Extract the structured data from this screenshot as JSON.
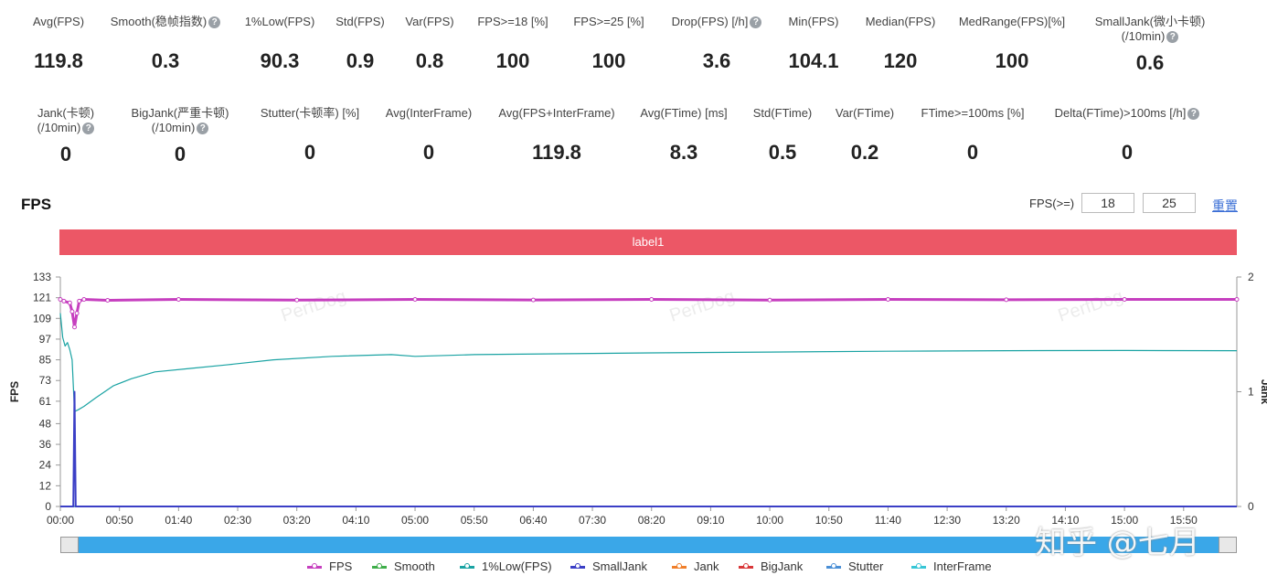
{
  "stats_row1": [
    {
      "label": "Avg(FPS)",
      "value": "119.8",
      "help": false
    },
    {
      "label": "Smooth(稳帧指数)",
      "value": "0.3",
      "help": true
    },
    {
      "label": "1%Low(FPS)",
      "value": "90.3",
      "help": false
    },
    {
      "label": "Std(FPS)",
      "value": "0.9",
      "help": false
    },
    {
      "label": "Var(FPS)",
      "value": "0.8",
      "help": false
    },
    {
      "label": "FPS>=18 [%]",
      "value": "100",
      "help": false
    },
    {
      "label": "FPS>=25 [%]",
      "value": "100",
      "help": false
    },
    {
      "label": "Drop(FPS) [/h]",
      "value": "3.6",
      "help": true
    },
    {
      "label": "Min(FPS)",
      "value": "104.1",
      "help": false
    },
    {
      "label": "Median(FPS)",
      "value": "120",
      "help": false
    },
    {
      "label": "MedRange(FPS)[%]",
      "value": "100",
      "help": false
    },
    {
      "label": "SmallJank(微小卡顿)",
      "label2": "(/10min)",
      "value": "0.6",
      "help": true
    }
  ],
  "stats_row2": [
    {
      "label": "Jank(卡顿)",
      "label2": "(/10min)",
      "value": "0",
      "help": true
    },
    {
      "label": "BigJank(严重卡顿)",
      "label2": "(/10min)",
      "value": "0",
      "help": true
    },
    {
      "label": "Stutter(卡顿率) [%]",
      "value": "0",
      "help": false
    },
    {
      "label": "Avg(InterFrame)",
      "value": "0",
      "help": false
    },
    {
      "label": "Avg(FPS+InterFrame)",
      "value": "119.8",
      "help": false
    },
    {
      "label": "Avg(FTime) [ms]",
      "value": "8.3",
      "help": false
    },
    {
      "label": "Std(FTime)",
      "value": "0.5",
      "help": false
    },
    {
      "label": "Var(FTime)",
      "value": "0.2",
      "help": false
    },
    {
      "label": "FTime>=100ms [%]",
      "value": "0",
      "help": false
    },
    {
      "label": "Delta(FTime)>100ms [/h]",
      "value": "0",
      "help": true
    }
  ],
  "section_title": "FPS",
  "threshold": {
    "label": "FPS(>=)",
    "value1": "18",
    "value2": "25",
    "reset_label": "重置"
  },
  "label_band": "label1",
  "help_glyph": "?",
  "watermark_text": "PerfDog",
  "corner_watermark": "知乎 @七月",
  "chart_data": {
    "type": "line",
    "ylabel": "FPS",
    "ylabel_right": "Jank",
    "yticks": [
      0,
      12,
      24,
      36,
      48,
      61,
      73,
      85,
      97,
      109,
      121,
      133
    ],
    "yticks_right": [
      0,
      1,
      2
    ],
    "ylim": [
      0,
      133
    ],
    "ylim_right": [
      0,
      2
    ],
    "x_ticks": [
      "00:00",
      "00:50",
      "01:40",
      "02:30",
      "03:20",
      "04:10",
      "05:00",
      "05:50",
      "06:40",
      "07:30",
      "08:20",
      "09:10",
      "10:00",
      "10:50",
      "11:40",
      "12:30",
      "13:20",
      "14:10",
      "15:00",
      "15:50"
    ],
    "x_range_seconds": [
      0,
      995
    ],
    "series": [
      {
        "name": "FPS",
        "color": "#c63fbf",
        "points": [
          [
            0,
            120
          ],
          [
            3,
            119
          ],
          [
            8,
            118
          ],
          [
            10,
            113
          ],
          [
            12,
            104
          ],
          [
            14,
            112
          ],
          [
            16,
            119
          ],
          [
            20,
            120
          ],
          [
            40,
            119.5
          ],
          [
            100,
            120
          ],
          [
            200,
            119.6
          ],
          [
            300,
            120
          ],
          [
            400,
            119.7
          ],
          [
            500,
            120
          ],
          [
            600,
            119.6
          ],
          [
            700,
            120
          ],
          [
            800,
            119.8
          ],
          [
            900,
            120
          ],
          [
            995,
            120
          ]
        ]
      },
      {
        "name": "Smooth",
        "color": "#3fae4a",
        "points": [
          [
            0,
            0
          ],
          [
            995,
            0
          ]
        ]
      },
      {
        "name": "1%Low(FPS)",
        "color": "#1aa3a3",
        "points": [
          [
            0,
            112
          ],
          [
            2,
            98
          ],
          [
            4,
            93
          ],
          [
            6,
            95
          ],
          [
            8,
            91
          ],
          [
            10,
            85
          ],
          [
            12,
            55
          ],
          [
            15,
            56
          ],
          [
            20,
            58
          ],
          [
            30,
            63
          ],
          [
            45,
            70
          ],
          [
            60,
            74
          ],
          [
            80,
            78
          ],
          [
            110,
            80
          ],
          [
            140,
            82
          ],
          [
            180,
            85
          ],
          [
            230,
            87
          ],
          [
            280,
            88
          ],
          [
            300,
            87
          ],
          [
            350,
            88
          ],
          [
            420,
            88.5
          ],
          [
            500,
            89
          ],
          [
            600,
            89.5
          ],
          [
            700,
            90
          ],
          [
            800,
            90.3
          ],
          [
            900,
            90.4
          ],
          [
            995,
            90.3
          ]
        ]
      },
      {
        "name": "SmallJank",
        "color": "#3b3fc6",
        "points": [
          [
            0,
            0
          ],
          [
            11,
            0
          ],
          [
            12,
            1
          ],
          [
            13,
            0
          ],
          [
            995,
            0
          ]
        ]
      },
      {
        "name": "Jank",
        "color": "#f07f2a",
        "points": [
          [
            0,
            0
          ],
          [
            995,
            0
          ]
        ]
      },
      {
        "name": "BigJank",
        "color": "#d9383a",
        "points": [
          [
            0,
            0
          ],
          [
            995,
            0
          ]
        ]
      },
      {
        "name": "Stutter",
        "color": "#4a8fd6",
        "points": [
          [
            0,
            0
          ],
          [
            995,
            0
          ]
        ]
      },
      {
        "name": "InterFrame",
        "color": "#37c6d6",
        "points": [
          [
            0,
            0
          ],
          [
            995,
            0
          ]
        ]
      }
    ]
  }
}
